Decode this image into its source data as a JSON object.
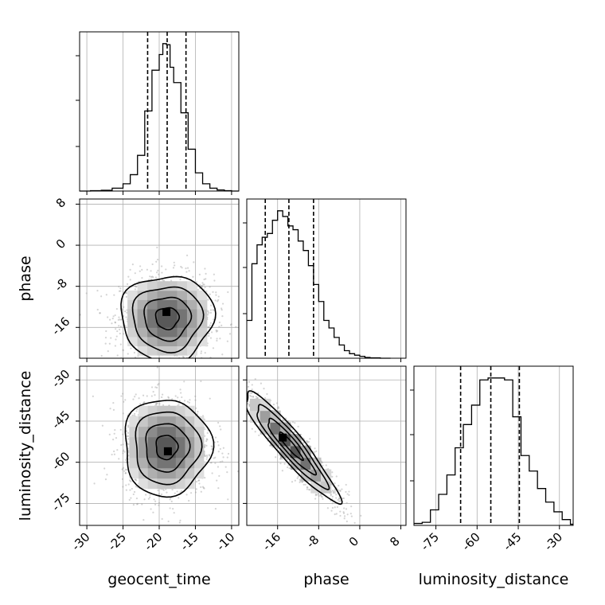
{
  "chart_data": {
    "type": "corner",
    "parameters": [
      {
        "name": "geocent_time",
        "range": [
          -31,
          -9
        ],
        "ticks": [
          -30,
          -25,
          -20,
          -15,
          -10
        ],
        "quantiles": [
          -21.6,
          -18.9,
          -16.3
        ],
        "hist_bins": [
          -31,
          -29.5,
          -28,
          -26.5,
          -25,
          -24,
          -23,
          -22,
          -21,
          -20,
          -19.5,
          -19,
          -18.5,
          -18,
          -17,
          -16,
          -15,
          -14,
          -13,
          -12,
          -11,
          -10,
          -9
        ],
        "hist_counts": [
          0,
          1,
          2,
          8,
          20,
          45,
          98,
          220,
          332,
          375,
          405,
          402,
          340,
          298,
          215,
          115,
          50,
          20,
          8,
          3,
          1,
          0
        ]
      },
      {
        "name": "phase",
        "range": [
          -22,
          9
        ],
        "ticks": [
          -16,
          -8,
          0,
          8
        ],
        "quantiles": [
          -18.4,
          -13.8,
          -9.0
        ],
        "hist_bins": [
          -22,
          -21,
          -20,
          -19,
          -18,
          -17,
          -16,
          -15,
          -14,
          -13,
          -12,
          -11,
          -10,
          -9,
          -8,
          -7,
          -6,
          -5,
          -4,
          -3,
          -2,
          -1,
          0,
          1,
          2,
          3,
          4,
          5,
          6
        ],
        "hist_counts": [
          100,
          250,
          300,
          320,
          330,
          365,
          390,
          375,
          350,
          340,
          310,
          285,
          245,
          195,
          150,
          100,
          80,
          55,
          35,
          20,
          12,
          8,
          5,
          2,
          1,
          1,
          0,
          0
        ]
      },
      {
        "name": "luminosity_distance",
        "range": [
          -83,
          -25
        ],
        "ticks": [
          -75,
          -60,
          -45,
          -30
        ],
        "quantiles": [
          -66.0,
          -55.0,
          -44.6
        ],
        "hist_bins": [
          -83,
          -80,
          -77,
          -74,
          -71,
          -68,
          -65,
          -62,
          -59,
          -56,
          -53,
          -50,
          -47,
          -44,
          -41,
          -38,
          -35,
          -32,
          -29,
          -26,
          -25
        ],
        "hist_counts": [
          5,
          8,
          40,
          80,
          130,
          200,
          260,
          310,
          375,
          380,
          380,
          375,
          280,
          180,
          140,
          95,
          60,
          35,
          15,
          3
        ]
      }
    ],
    "pairs": [
      {
        "x": "geocent_time",
        "y": "phase",
        "center": [
          -18.9,
          -14.2
        ],
        "sigma": [
          3.2,
          4.2
        ],
        "rho": 0.0,
        "peak": [
          -19.0,
          -13.0
        ]
      },
      {
        "x": "geocent_time",
        "y": "luminosity_distance",
        "center": [
          -19.0,
          -54.5
        ],
        "sigma": [
          3.0,
          8.8
        ],
        "rho": 0.0,
        "peak": [
          -18.8,
          -56.0
        ]
      },
      {
        "x": "phase",
        "y": "luminosity_distance",
        "center": [
          -13.5,
          -54.0
        ],
        "sigma": [
          4.6,
          10.0
        ],
        "rho": -0.93,
        "peak": [
          -15.0,
          -51.0
        ]
      }
    ],
    "xlabels": [
      "geocent_time",
      "phase",
      "luminosity_distance"
    ],
    "ylabels": [
      "phase",
      "luminosity_distance"
    ],
    "grid": true,
    "colors": {
      "line": "#000000",
      "scatter": "#a0a0a0",
      "grid": "#b0b0b0"
    }
  }
}
